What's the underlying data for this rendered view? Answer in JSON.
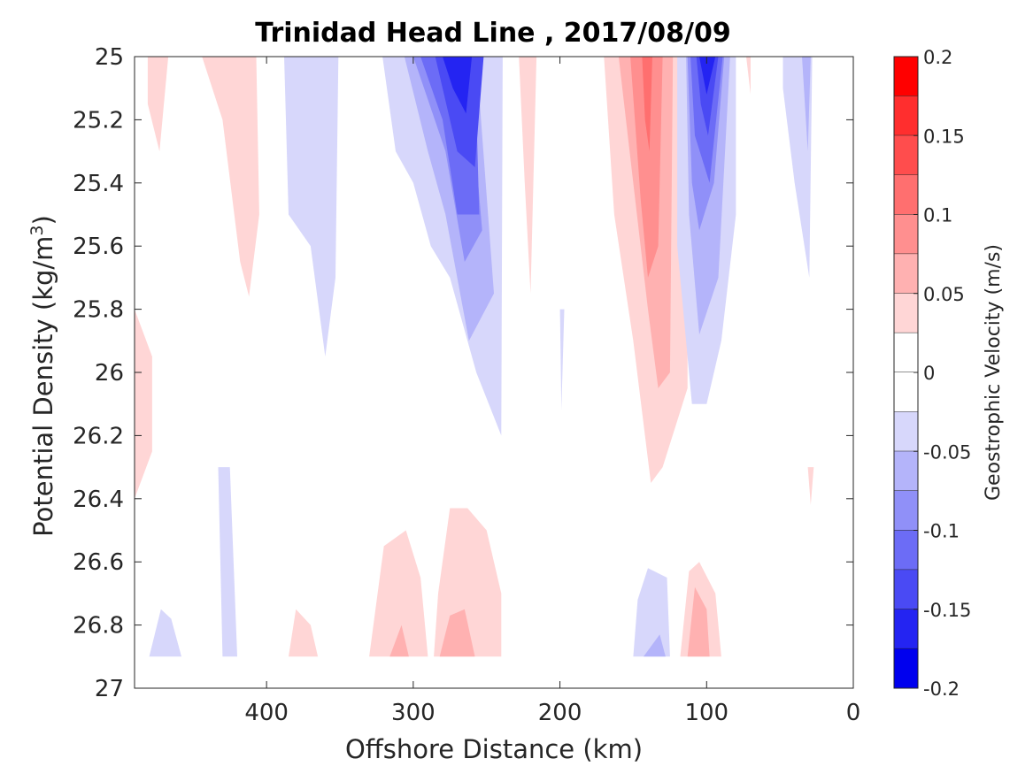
{
  "chart_data": {
    "type": "contour",
    "title": "Trinidad Head Line , 2017/08/09",
    "xlabel": "Offshore Distance (km)",
    "ylabel": "Potential Density (kg/m",
    "ylabel_sup": "3",
    "ylabel_close": ")",
    "xlim": [
      490,
      0
    ],
    "ylim": [
      25,
      27
    ],
    "x_ticks": [
      400,
      300,
      200,
      100,
      0
    ],
    "x_tick_labels": [
      "400",
      "300",
      "200",
      "100",
      "0"
    ],
    "y_ticks": [
      25,
      25.2,
      25.4,
      25.6,
      25.8,
      26,
      26.2,
      26.4,
      26.6,
      26.8,
      27
    ],
    "y_tick_labels": [
      "25",
      "25.2",
      "25.4",
      "25.6",
      "25.8",
      "26",
      "26.2",
      "26.4",
      "26.6",
      "26.8",
      "27"
    ],
    "colorbar": {
      "label": "Geostrophic Velocity (m/s)",
      "range": [
        -0.2,
        0.2
      ],
      "ticks": [
        0.2,
        0.15,
        0.1,
        0.05,
        0,
        -0.05,
        -0.1,
        -0.15,
        -0.2
      ],
      "tick_labels": [
        "0.2",
        "0.15",
        "0.1",
        "0.05",
        "0",
        "-0.05",
        "-0.1",
        "-0.15",
        "-0.2"
      ],
      "levels": [
        {
          "lo": 0.175,
          "hi": 0.2,
          "color": "#ff0000"
        },
        {
          "lo": 0.15,
          "hi": 0.175,
          "color": "#ff2e2e"
        },
        {
          "lo": 0.125,
          "hi": 0.15,
          "color": "#ff4d4d"
        },
        {
          "lo": 0.1,
          "hi": 0.125,
          "color": "#ff6f6f"
        },
        {
          "lo": 0.075,
          "hi": 0.1,
          "color": "#ff8f8f"
        },
        {
          "lo": 0.05,
          "hi": 0.075,
          "color": "#ffb1b1"
        },
        {
          "lo": 0.025,
          "hi": 0.05,
          "color": "#ffd6d6"
        },
        {
          "lo": 0.0,
          "hi": 0.025,
          "color": "#ffffff"
        },
        {
          "lo": -0.025,
          "hi": 0.0,
          "color": "#ffffff"
        },
        {
          "lo": -0.05,
          "hi": -0.025,
          "color": "#d7d7fb"
        },
        {
          "lo": -0.075,
          "hi": -0.05,
          "color": "#b4b4fa"
        },
        {
          "lo": -0.1,
          "hi": -0.075,
          "color": "#9090f8"
        },
        {
          "lo": -0.125,
          "hi": -0.1,
          "color": "#6c6cf6"
        },
        {
          "lo": -0.15,
          "hi": -0.125,
          "color": "#4a4af4"
        },
        {
          "lo": -0.175,
          "hi": -0.15,
          "color": "#2424f2"
        },
        {
          "lo": -0.2,
          "hi": -0.175,
          "color": "#0000ee"
        }
      ]
    },
    "features": [
      {
        "level": 0.0375,
        "color": "#ffd6d6",
        "points": [
          [
            481,
            25
          ],
          [
            467,
            25
          ],
          [
            473,
            25.3
          ],
          [
            481,
            25.15
          ]
        ]
      },
      {
        "level": 0.0375,
        "color": "#ffd6d6",
        "points": [
          [
            444,
            25
          ],
          [
            407,
            25
          ],
          [
            405,
            25.5
          ],
          [
            412,
            25.76
          ],
          [
            418,
            25.65
          ],
          [
            430,
            25.2
          ]
        ]
      },
      {
        "level": 0.0375,
        "color": "#ffd6d6",
        "points": [
          [
            490,
            25.8
          ],
          [
            478,
            25.95
          ],
          [
            478,
            26.25
          ],
          [
            490,
            26.4
          ]
        ]
      },
      {
        "level": 0.0375,
        "color": "#ffd6d6",
        "points": [
          [
            228,
            25
          ],
          [
            216,
            25
          ],
          [
            220,
            25.75
          ],
          [
            224,
            25.4
          ]
        ]
      },
      {
        "level": 0.0375,
        "color": "#ffd6d6",
        "points": [
          [
            170,
            25
          ],
          [
            113,
            25
          ],
          [
            113,
            26.05
          ],
          [
            130,
            26.3
          ],
          [
            138,
            26.35
          ],
          [
            150,
            25.9
          ],
          [
            163,
            25.5
          ]
        ]
      },
      {
        "level": 0.0375,
        "color": "#ffd6d6",
        "points": [
          [
            73,
            25
          ],
          [
            70,
            25.12
          ],
          [
            70,
            25
          ]
        ]
      },
      {
        "level": 0.0375,
        "color": "#ffd6d6",
        "points": [
          [
            31,
            26.3
          ],
          [
            27,
            26.3
          ],
          [
            29,
            26.42
          ]
        ]
      },
      {
        "level": 0.0375,
        "color": "#ffd6d6",
        "points": [
          [
            385,
            26.9
          ],
          [
            365,
            26.9
          ],
          [
            370,
            26.8
          ],
          [
            380,
            26.75
          ]
        ]
      },
      {
        "level": 0.0375,
        "color": "#ffd6d6",
        "points": [
          [
            330,
            26.9
          ],
          [
            290,
            26.9
          ],
          [
            295,
            26.65
          ],
          [
            305,
            26.5
          ],
          [
            320,
            26.55
          ]
        ]
      },
      {
        "level": 0.0375,
        "color": "#ffd6d6",
        "points": [
          [
            286,
            26.9
          ],
          [
            240,
            26.9
          ],
          [
            240,
            26.7
          ],
          [
            250,
            26.5
          ],
          [
            263,
            26.43
          ],
          [
            275,
            26.43
          ],
          [
            283,
            26.7
          ]
        ]
      },
      {
        "level": 0.0375,
        "color": "#ffd6d6",
        "points": [
          [
            118,
            26.9
          ],
          [
            90,
            26.9
          ],
          [
            94,
            26.7
          ],
          [
            105,
            26.6
          ],
          [
            112,
            26.63
          ]
        ]
      },
      {
        "level": 0.0625,
        "color": "#ffb1b1",
        "points": [
          [
            160,
            25
          ],
          [
            123,
            25
          ],
          [
            125,
            26
          ],
          [
            133,
            26.05
          ],
          [
            140,
            25.8
          ],
          [
            150,
            25.4
          ]
        ]
      },
      {
        "level": 0.0625,
        "color": "#ffb1b1",
        "points": [
          [
            316,
            26.9
          ],
          [
            303,
            26.9
          ],
          [
            308,
            26.8
          ]
        ]
      },
      {
        "level": 0.0625,
        "color": "#ffb1b1",
        "points": [
          [
            282,
            26.9
          ],
          [
            258,
            26.9
          ],
          [
            265,
            26.75
          ],
          [
            275,
            26.77
          ]
        ]
      },
      {
        "level": 0.0625,
        "color": "#ffb1b1",
        "points": [
          [
            113,
            26.9
          ],
          [
            98,
            26.9
          ],
          [
            100,
            26.75
          ],
          [
            108,
            26.68
          ]
        ]
      },
      {
        "level": 0.0875,
        "color": "#ff8f8f",
        "points": [
          [
            152,
            25
          ],
          [
            130,
            25
          ],
          [
            133,
            25.6
          ],
          [
            140,
            25.7
          ],
          [
            145,
            25.45
          ]
        ]
      },
      {
        "level": 0.1125,
        "color": "#ff6f6f",
        "points": [
          [
            144,
            25
          ],
          [
            137,
            25
          ],
          [
            139,
            25.3
          ],
          [
            142,
            25.2
          ]
        ]
      },
      {
        "level": -0.0375,
        "color": "#d7d7fb",
        "points": [
          [
            388,
            25
          ],
          [
            351,
            25
          ],
          [
            353,
            25.7
          ],
          [
            360,
            25.95
          ],
          [
            370,
            25.6
          ],
          [
            385,
            25.5
          ]
        ]
      },
      {
        "level": -0.0375,
        "color": "#d7d7fb",
        "points": [
          [
            321,
            25
          ],
          [
            239,
            25
          ],
          [
            240,
            26.2
          ],
          [
            257,
            26
          ],
          [
            275,
            25.7
          ],
          [
            288,
            25.6
          ],
          [
            300,
            25.4
          ],
          [
            312,
            25.3
          ]
        ]
      },
      {
        "level": -0.0375,
        "color": "#d7d7fb",
        "points": [
          [
            120,
            25
          ],
          [
            80,
            25
          ],
          [
            80,
            25.5
          ],
          [
            90,
            25.9
          ],
          [
            100,
            26.1
          ],
          [
            110,
            26.1
          ],
          [
            120,
            25.6
          ]
        ]
      },
      {
        "level": -0.0375,
        "color": "#d7d7fb",
        "points": [
          [
            48,
            25
          ],
          [
            28,
            25
          ],
          [
            30,
            25.7
          ],
          [
            40,
            25.4
          ],
          [
            48,
            25.1
          ]
        ]
      },
      {
        "level": -0.0375,
        "color": "#d7d7fb",
        "points": [
          [
            200,
            25.8
          ],
          [
            197,
            25.8
          ],
          [
            199,
            26.12
          ]
        ]
      },
      {
        "level": -0.0375,
        "color": "#d7d7fb",
        "points": [
          [
            433,
            26.3
          ],
          [
            425,
            26.3
          ],
          [
            420,
            26.9
          ],
          [
            430,
            26.9
          ]
        ]
      },
      {
        "level": -0.0375,
        "color": "#d7d7fb",
        "points": [
          [
            480,
            26.9
          ],
          [
            458,
            26.9
          ],
          [
            465,
            26.78
          ],
          [
            472,
            26.75
          ]
        ]
      },
      {
        "level": -0.0375,
        "color": "#d7d7fb",
        "points": [
          [
            150,
            26.9
          ],
          [
            125,
            26.9
          ],
          [
            127,
            26.65
          ],
          [
            140,
            26.62
          ],
          [
            147,
            26.72
          ]
        ]
      },
      {
        "level": -0.0625,
        "color": "#b4b4fa",
        "points": [
          [
            306,
            25
          ],
          [
            257,
            25
          ],
          [
            245,
            25.75
          ],
          [
            262,
            25.9
          ],
          [
            278,
            25.5
          ],
          [
            290,
            25.3
          ]
        ]
      },
      {
        "level": -0.0625,
        "color": "#b4b4fa",
        "points": [
          [
            114,
            25
          ],
          [
            84,
            25
          ],
          [
            92,
            25.7
          ],
          [
            105,
            25.88
          ],
          [
            112,
            25.5
          ]
        ]
      },
      {
        "level": -0.0625,
        "color": "#b4b4fa",
        "points": [
          [
            35,
            25
          ],
          [
            29,
            25
          ],
          [
            31,
            25.3
          ]
        ]
      },
      {
        "level": -0.0625,
        "color": "#b4b4fa",
        "points": [
          [
            143,
            26.9
          ],
          [
            128,
            26.9
          ],
          [
            132,
            26.83
          ]
        ]
      },
      {
        "level": -0.0875,
        "color": "#9090f8",
        "points": [
          [
            300,
            25
          ],
          [
            263,
            25
          ],
          [
            253,
            25.55
          ],
          [
            265,
            25.65
          ],
          [
            278,
            25.3
          ]
        ]
      },
      {
        "level": -0.0875,
        "color": "#9090f8",
        "points": [
          [
            113,
            25
          ],
          [
            88,
            25
          ],
          [
            95,
            25.4
          ],
          [
            105,
            25.55
          ],
          [
            110,
            25.4
          ]
        ]
      },
      {
        "level": -0.1125,
        "color": "#6c6cf6",
        "points": [
          [
            295,
            25
          ],
          [
            258,
            25
          ],
          [
            255,
            25.5
          ],
          [
            270,
            25.5
          ],
          [
            280,
            25.2
          ]
        ]
      },
      {
        "level": -0.1125,
        "color": "#6c6cf6",
        "points": [
          [
            111,
            25
          ],
          [
            89,
            25
          ],
          [
            98,
            25.4
          ],
          [
            108,
            25.25
          ]
        ]
      },
      {
        "level": -0.1375,
        "color": "#4a4af4",
        "points": [
          [
            285,
            25
          ],
          [
            252,
            25
          ],
          [
            258,
            25.35
          ],
          [
            270,
            25.3
          ]
        ]
      },
      {
        "level": -0.1375,
        "color": "#4a4af4",
        "points": [
          [
            107,
            25
          ],
          [
            92,
            25
          ],
          [
            99,
            25.25
          ],
          [
            104,
            25.15
          ]
        ]
      },
      {
        "level": -0.1625,
        "color": "#2424f2",
        "points": [
          [
            280,
            25
          ],
          [
            260,
            25
          ],
          [
            264,
            25.18
          ],
          [
            273,
            25.1
          ]
        ]
      },
      {
        "level": -0.1625,
        "color": "#2424f2",
        "points": [
          [
            105,
            25
          ],
          [
            94,
            25
          ],
          [
            100,
            25.12
          ]
        ]
      }
    ]
  }
}
